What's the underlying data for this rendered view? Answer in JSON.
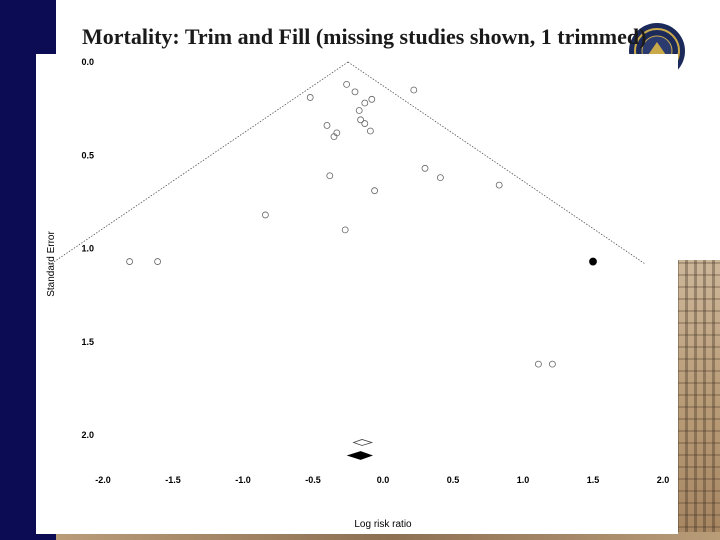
{
  "slide": {
    "title": "Mortality: Trim and Fill (missing studies shown, 1 trimmed)"
  },
  "colors": {
    "left_bar": "#0c0c54",
    "chart_background": "#ffffff",
    "marker": "#000000"
  },
  "chart_data": {
    "type": "scatter",
    "title": "",
    "xlabel": "Log risk ratio",
    "ylabel": "Standard Error",
    "xlim": [
      -2.0,
      2.0
    ],
    "ylim": [
      0.0,
      2.0
    ],
    "y_inverted": true,
    "x_ticks": [
      "-2.0",
      "-1.5",
      "-1.0",
      "-0.5",
      "0.0",
      "0.5",
      "1.0",
      "1.5",
      "2.0"
    ],
    "x_tick_values": [
      -2.0,
      -1.5,
      -1.0,
      -0.5,
      0.0,
      0.5,
      1.0,
      1.5,
      2.0
    ],
    "y_ticks": [
      "0.0",
      "0.5",
      "1.0",
      "1.5",
      "2.0"
    ],
    "y_tick_values": [
      0.0,
      0.5,
      1.0,
      1.5,
      2.0
    ],
    "grid": false,
    "funnel": {
      "center": -0.25,
      "apex_se": 0.0,
      "bottom_se": 1.08
    },
    "series": [
      {
        "marker": "open-circle",
        "points": [
          {
            "x": -0.52,
            "y": 0.19
          },
          {
            "x": -0.26,
            "y": 0.12
          },
          {
            "x": -0.2,
            "y": 0.16
          },
          {
            "x": -0.17,
            "y": 0.26
          },
          {
            "x": -0.16,
            "y": 0.31
          },
          {
            "x": -0.08,
            "y": 0.2
          },
          {
            "x": -0.13,
            "y": 0.22
          },
          {
            "x": 0.22,
            "y": 0.15
          },
          {
            "x": -0.13,
            "y": 0.33
          },
          {
            "x": -0.4,
            "y": 0.34
          },
          {
            "x": -0.33,
            "y": 0.38
          },
          {
            "x": -0.35,
            "y": 0.4
          },
          {
            "x": -0.09,
            "y": 0.37
          },
          {
            "x": -0.38,
            "y": 0.61
          },
          {
            "x": 0.3,
            "y": 0.57
          },
          {
            "x": 0.41,
            "y": 0.62
          },
          {
            "x": -0.06,
            "y": 0.69
          },
          {
            "x": 0.83,
            "y": 0.66
          },
          {
            "x": -0.84,
            "y": 0.82
          },
          {
            "x": -0.27,
            "y": 0.9
          },
          {
            "x": -1.81,
            "y": 1.07
          },
          {
            "x": -1.61,
            "y": 1.07
          },
          {
            "x": 1.11,
            "y": 1.62
          },
          {
            "x": 1.21,
            "y": 1.62
          }
        ]
      },
      {
        "marker": "filled-circle",
        "points": [
          {
            "x": 1.5,
            "y": 1.07
          }
        ]
      }
    ],
    "summary_diamond": {
      "center": -0.16,
      "lower": -0.25,
      "upper": -0.08,
      "y": 2.11
    },
    "summary_open_diamond": {
      "center": -0.15,
      "lower": -0.21,
      "upper": -0.08,
      "y": 2.04
    }
  }
}
